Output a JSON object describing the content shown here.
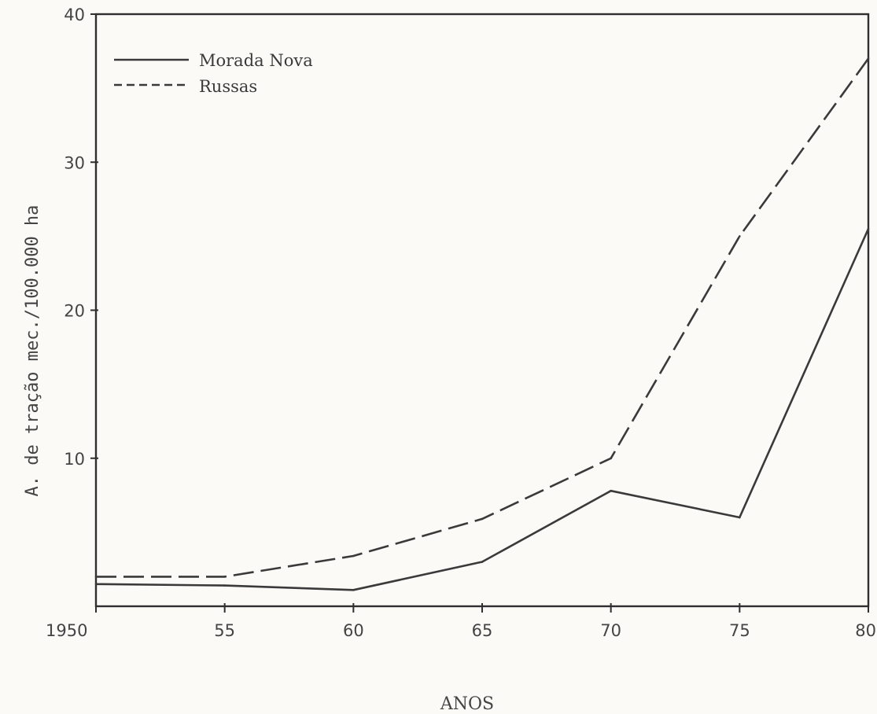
{
  "chart_data": {
    "type": "line",
    "title": "",
    "xlabel": "ANOS",
    "ylabel": "A. de tração mec./100.000 ha",
    "x": [
      1950,
      1955,
      1960,
      1965,
      1970,
      1975,
      1980
    ],
    "x_tick_labels": [
      "1950",
      "55",
      "60",
      "65",
      "70",
      "75",
      "80"
    ],
    "y_ticks": [
      10,
      20,
      30,
      40
    ],
    "y_tick_labels": [
      "10",
      "20",
      "30",
      "40"
    ],
    "xlim": [
      1950,
      1980
    ],
    "ylim": [
      0,
      40
    ],
    "grid": false,
    "legend_position": "top-left",
    "series": [
      {
        "name": "Morada Nova",
        "line_style": "solid",
        "values": [
          1.5,
          1.4,
          1.1,
          3.0,
          7.8,
          6.0,
          25.5
        ]
      },
      {
        "name": "Russas",
        "line_style": "dashed",
        "values": [
          2.0,
          2.0,
          3.4,
          5.9,
          10.0,
          25.0,
          37.0
        ]
      }
    ],
    "colors": {
      "line": "#3a3a3a",
      "frame": "#2f2f2f",
      "background": "#fbfaf7"
    }
  }
}
